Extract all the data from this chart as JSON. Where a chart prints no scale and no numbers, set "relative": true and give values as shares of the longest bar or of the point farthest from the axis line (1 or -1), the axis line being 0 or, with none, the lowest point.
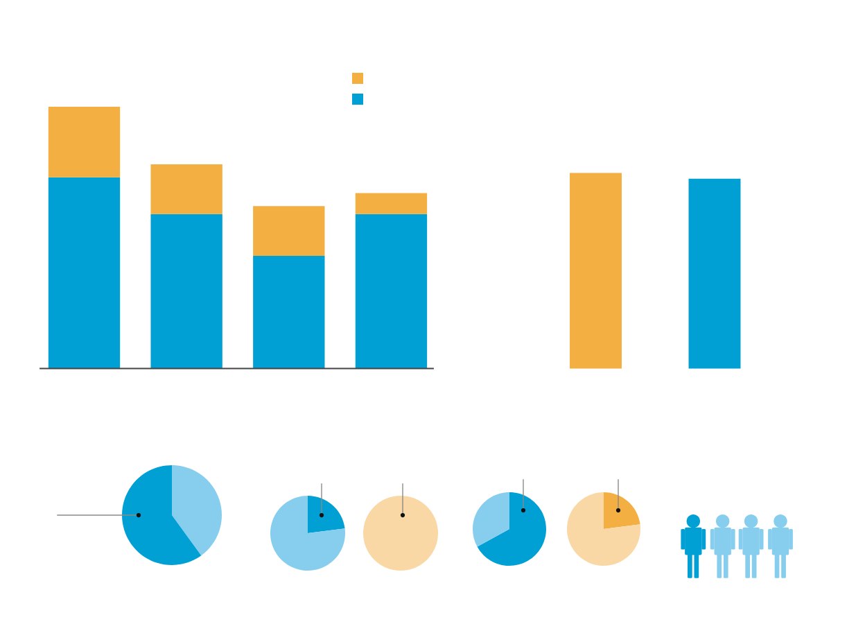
{
  "chart_data": [
    {
      "type": "bar",
      "stacked": true,
      "relative": true,
      "categories": [
        null,
        null,
        null,
        null
      ],
      "series": [
        {
          "color": "#009fd4",
          "values": [
            0.73,
            0.59,
            0.43,
            0.59
          ]
        },
        {
          "color": "#f3af42",
          "values": [
            0.27,
            0.19,
            0.19,
            0.08
          ]
        }
      ]
    },
    {
      "type": "bar",
      "relative": true,
      "categories": [
        null,
        null
      ],
      "values": [
        1,
        0.97
      ],
      "colors": [
        "#f3af42",
        "#009fd4"
      ]
    },
    {
      "type": "pie",
      "categories": [
        null,
        null
      ],
      "values": [
        40,
        60
      ],
      "colors": [
        "#87ceee",
        "#009fd4"
      ]
    },
    {
      "type": "pie",
      "categories": [
        null,
        null
      ],
      "values": [
        23,
        77
      ],
      "colors": [
        "#009fd4",
        "#87ceee"
      ]
    },
    {
      "type": "pie",
      "categories": [
        null
      ],
      "values": [
        100
      ],
      "colors": [
        "#fad8a5"
      ]
    },
    {
      "type": "pie",
      "categories": [
        null,
        null
      ],
      "values": [
        67,
        33
      ],
      "colors": [
        "#009fd4",
        "#87ceee"
      ]
    },
    {
      "type": "pie",
      "categories": [
        null,
        null
      ],
      "values": [
        23,
        77
      ],
      "colors": [
        "#f3af42",
        "#fad8a5"
      ]
    }
  ]
}
